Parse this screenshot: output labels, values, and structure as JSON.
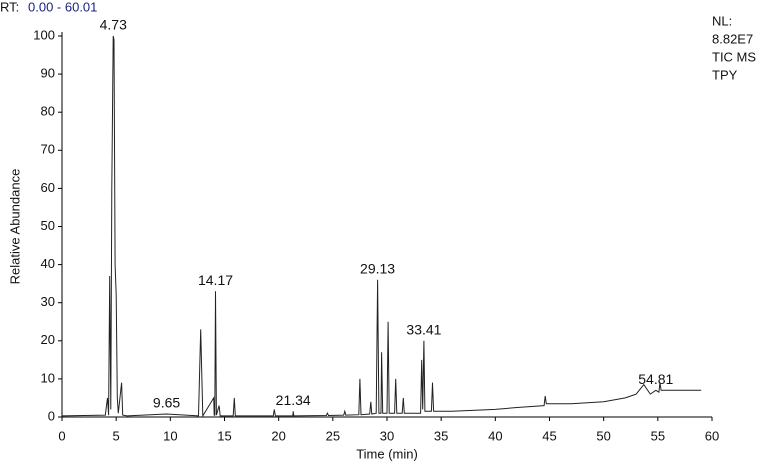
{
  "header": {
    "rt_label": "RT:",
    "rt_range": "0.00 - 60.01"
  },
  "info": [
    "NL:",
    "8.82E7",
    "TIC  MS",
    "TPY"
  ],
  "chart_data": {
    "type": "line",
    "x_label": "Time (min)",
    "y_label": "Relative Abundance",
    "xlim": [
      0,
      60
    ],
    "xticks": [
      0,
      5,
      10,
      15,
      20,
      25,
      30,
      35,
      40,
      45,
      50,
      55,
      60
    ],
    "ylim": [
      0,
      100
    ],
    "yticks": [
      0,
      10,
      20,
      30,
      40,
      50,
      60,
      70,
      80,
      90,
      100
    ],
    "series": [
      {
        "color": "#222222",
        "x": [
          0,
          4.0,
          4.2,
          4.3,
          4.4,
          4.5,
          4.6,
          4.73,
          4.8,
          4.9,
          5.0,
          5.1,
          5.2,
          5.5,
          5.6,
          6,
          9.65,
          12.6,
          12.8,
          13.0,
          14.0,
          14.05,
          14.1,
          14.17,
          14.25,
          14.5,
          14.6,
          15.8,
          15.9,
          16.0,
          19.5,
          19.6,
          19.7,
          21.3,
          21.34,
          21.4,
          24.4,
          24.5,
          24.6,
          26,
          26.1,
          26.2,
          27.4,
          27.5,
          27.6,
          28.4,
          28.5,
          28.6,
          29.0,
          29.13,
          29.25,
          29.45,
          29.5,
          29.6,
          30.0,
          30.1,
          30.2,
          30.7,
          30.8,
          30.9,
          31.4,
          31.5,
          31.6,
          33.1,
          33.2,
          33.3,
          33.41,
          33.5,
          34.1,
          34.2,
          34.3,
          36,
          40,
          42,
          44.5,
          44.6,
          44.7,
          47,
          50,
          52,
          53,
          53.7,
          54.3,
          54.81,
          55.1,
          55.2,
          55.3,
          57,
          59
        ],
        "values": [
          0.3,
          0.5,
          5,
          0.5,
          37,
          2,
          60,
          100,
          99,
          40,
          32,
          5,
          1,
          9,
          0.5,
          0.3,
          0.8,
          0.3,
          23,
          0.3,
          5,
          0.5,
          0.5,
          33,
          0.5,
          3,
          0.3,
          0.3,
          5,
          0.3,
          0.3,
          2,
          0.3,
          0.3,
          1.5,
          0.3,
          0.4,
          1,
          0.4,
          0.5,
          1.5,
          0.5,
          0.6,
          10,
          0.6,
          0.8,
          4,
          0.8,
          1,
          36,
          1,
          1,
          17,
          1,
          1,
          25,
          1,
          1,
          10,
          1,
          1,
          5,
          1,
          1,
          15,
          2,
          20,
          1.5,
          1.5,
          9,
          1.5,
          1.5,
          2,
          2.5,
          3,
          5.5,
          3.5,
          3.5,
          4,
          5,
          6,
          8.5,
          6,
          7,
          6.5,
          9,
          7,
          7,
          7
        ]
      }
    ],
    "annotations": [
      {
        "x": 4.73
      },
      {
        "x": 9.65
      },
      {
        "x": 14.17
      },
      {
        "x": 21.34
      },
      {
        "x": 29.13
      },
      {
        "x": 33.41
      },
      {
        "x": 54.81
      }
    ]
  }
}
